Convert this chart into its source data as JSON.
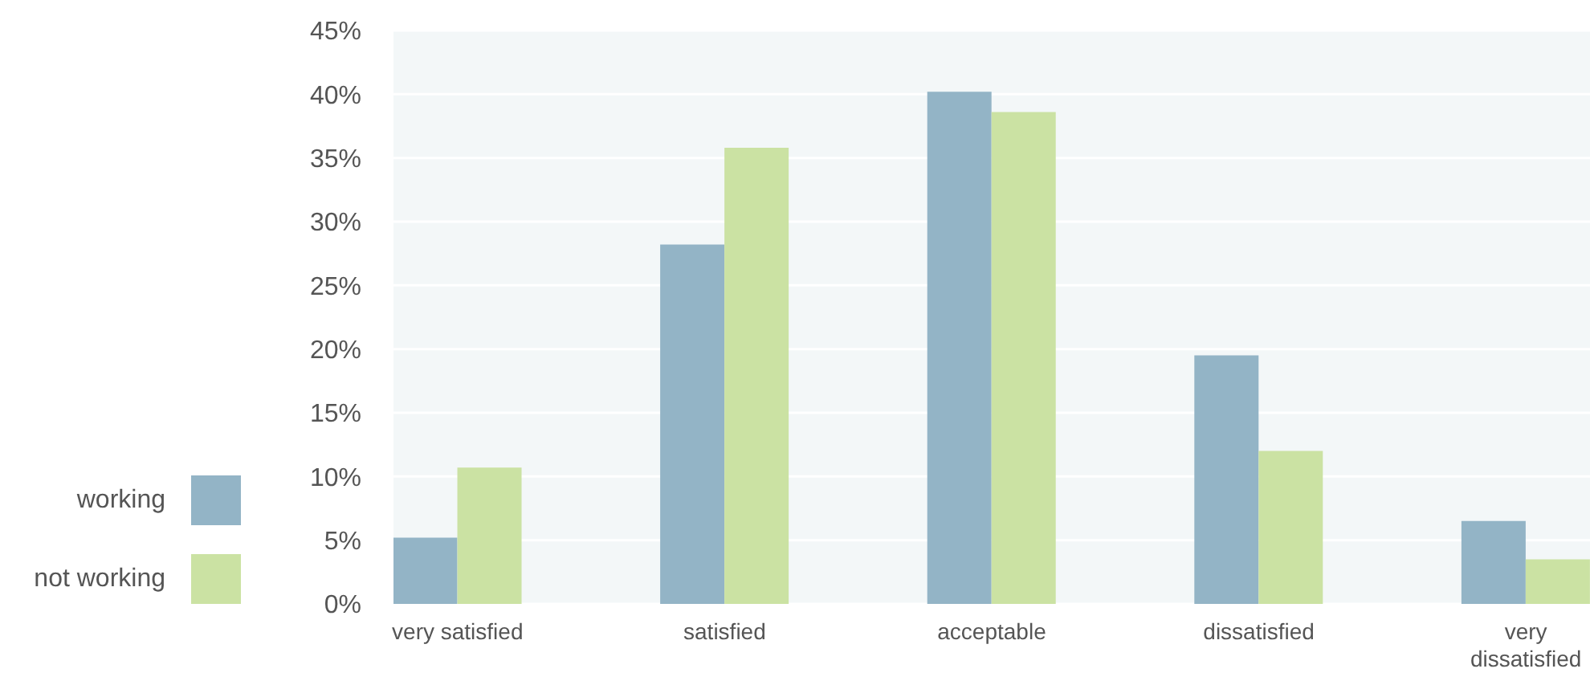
{
  "chart_data": {
    "type": "bar",
    "categories": [
      "very satisfied",
      "satisfied",
      "acceptable",
      "dissatisfied",
      "very dissatisfied"
    ],
    "series": [
      {
        "name": "working",
        "color": "#93b4c6",
        "values": [
          5.2,
          28.2,
          40.2,
          19.5,
          6.5
        ]
      },
      {
        "name": "not working",
        "color": "#cbe2a3",
        "values": [
          10.7,
          35.8,
          38.6,
          12.0,
          3.5
        ]
      }
    ],
    "ylim": [
      0,
      45
    ],
    "yticks": [
      {
        "value": 0,
        "label": "0%"
      },
      {
        "value": 5,
        "label": "5%"
      },
      {
        "value": 10,
        "label": "10%"
      },
      {
        "value": 15,
        "label": "15%"
      },
      {
        "value": 20,
        "label": "20%"
      },
      {
        "value": 25,
        "label": "25%"
      },
      {
        "value": 30,
        "label": "30%"
      },
      {
        "value": 35,
        "label": "35%"
      },
      {
        "value": 40,
        "label": "40%"
      },
      {
        "value": 45,
        "label": "45%"
      }
    ],
    "grid": "y",
    "legend": "bottom left"
  }
}
